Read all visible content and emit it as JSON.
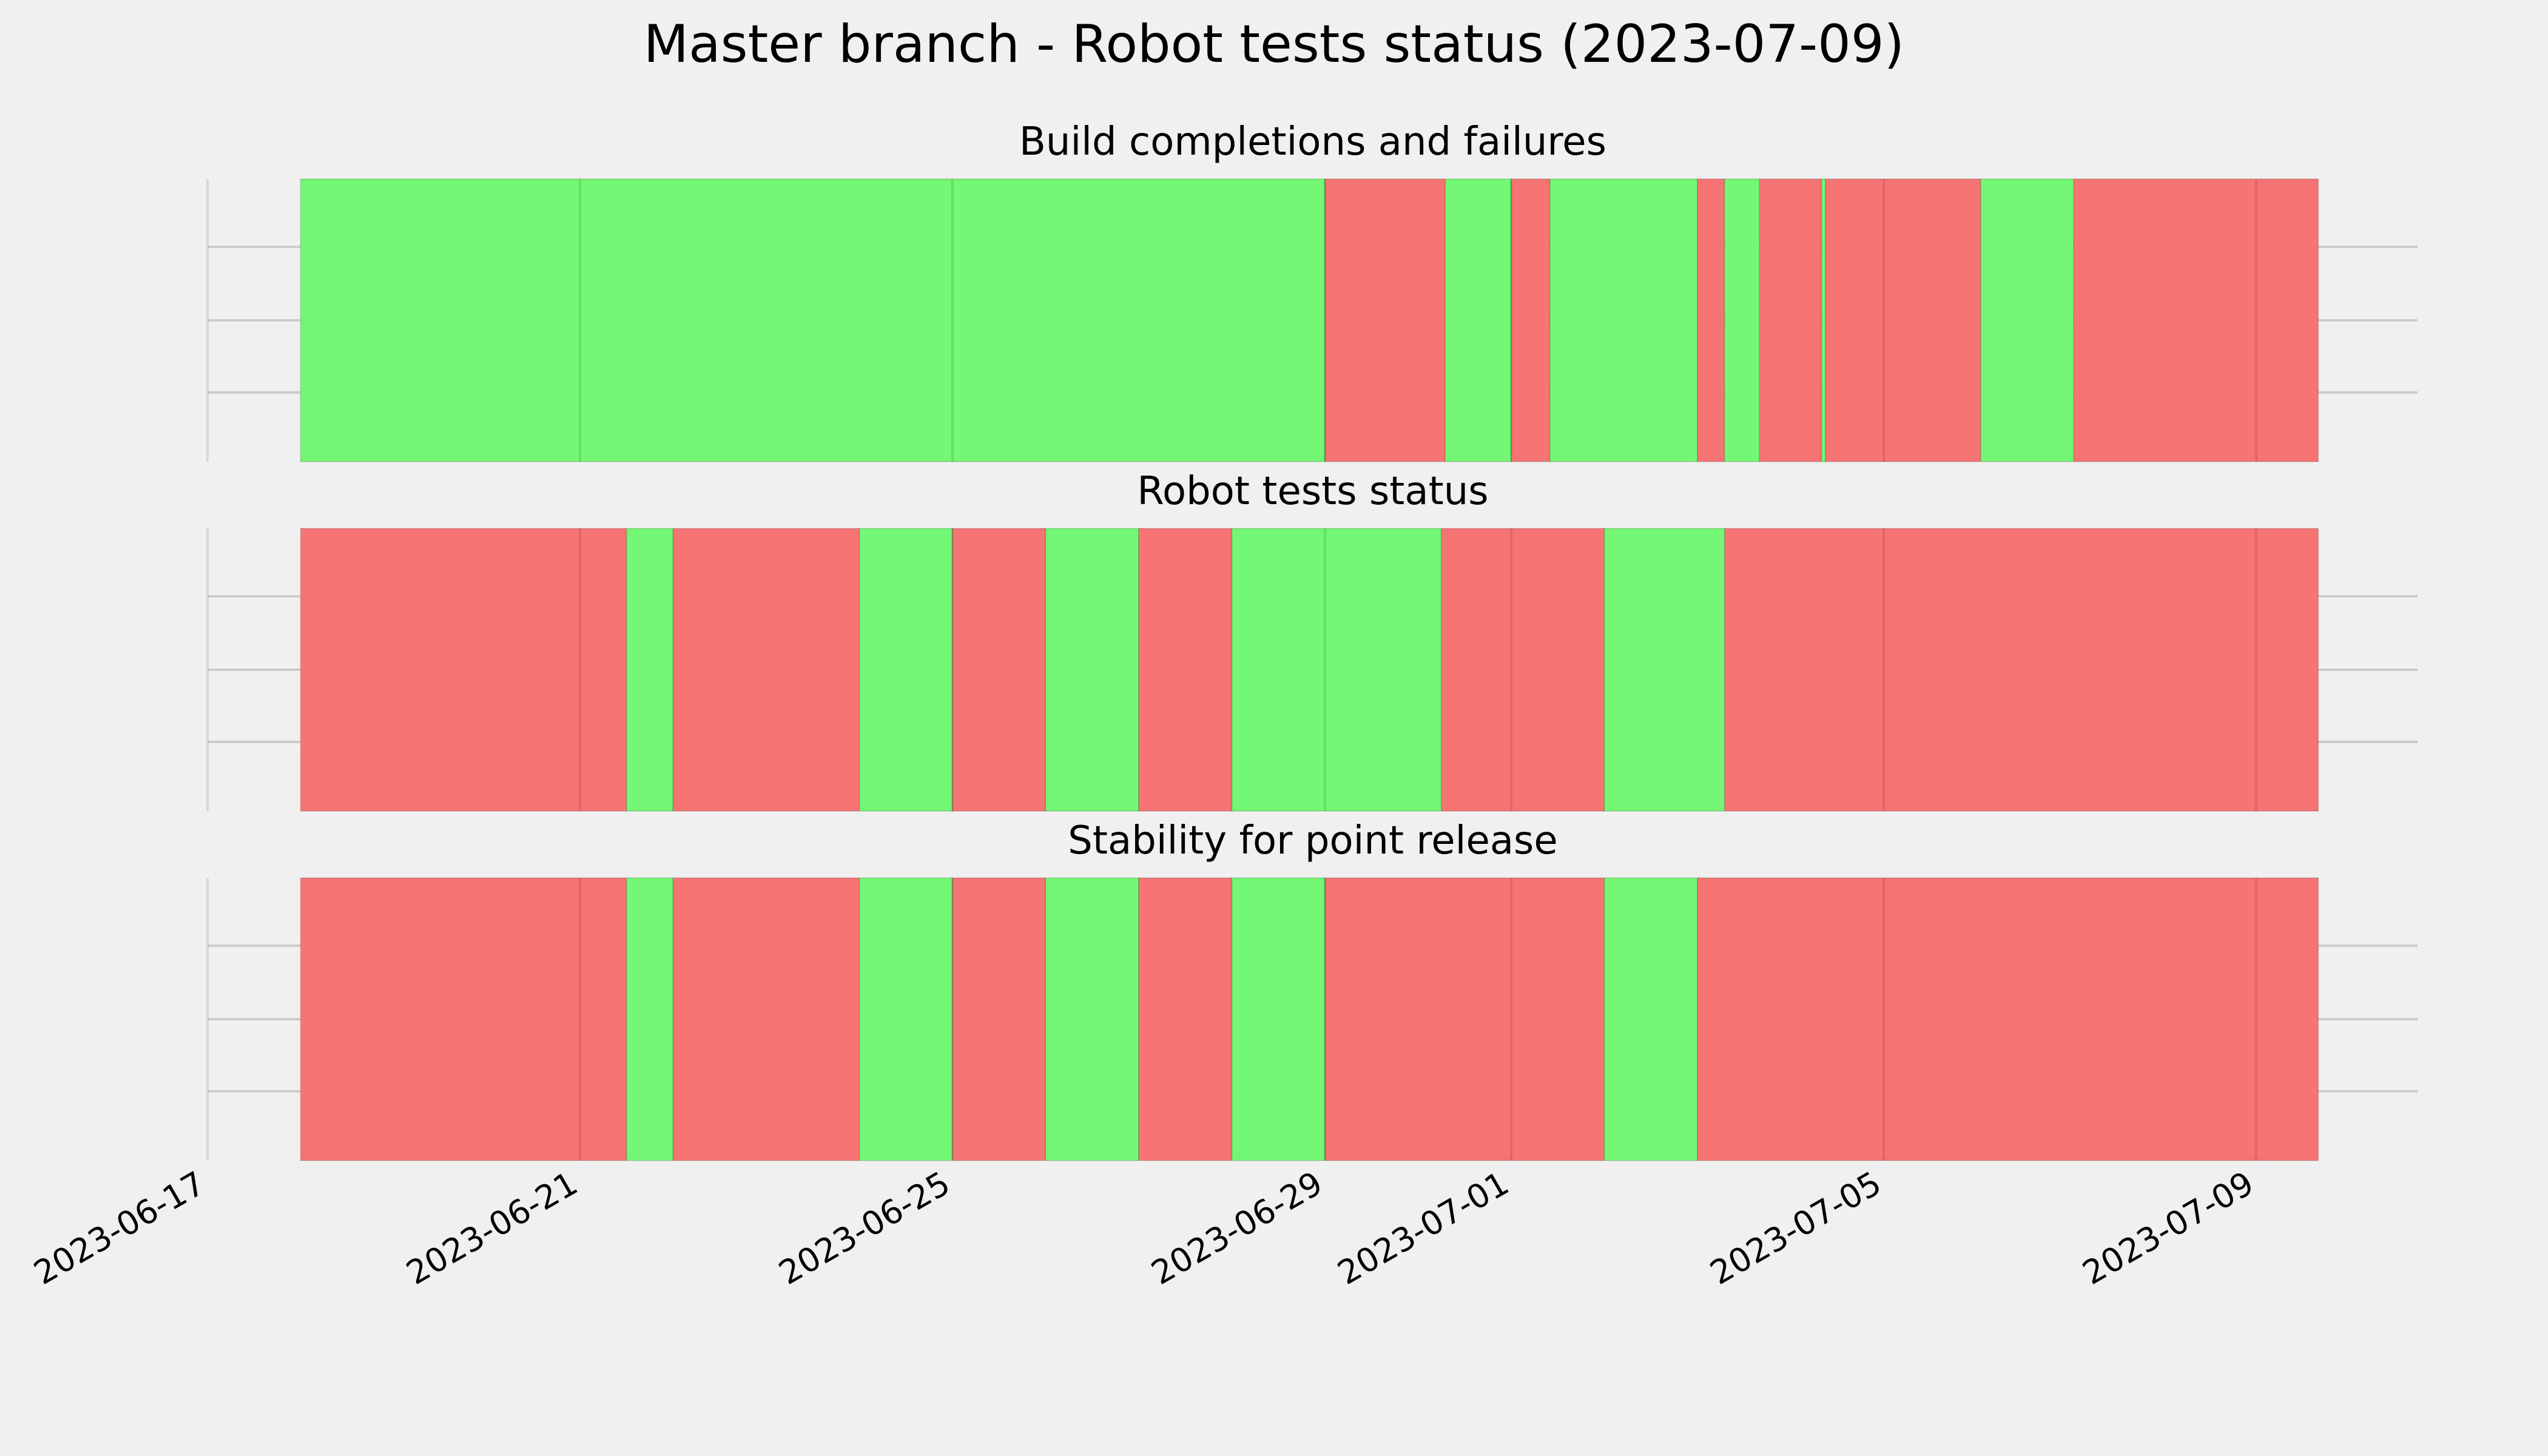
{
  "chart_data": {
    "type": "timeline",
    "title": "Master branch - Robot tests status (2023-07-09)",
    "x_tick_labels": [
      "2023-06-17",
      "2023-06-21",
      "2023-06-25",
      "2023-06-29",
      "2023-07-01",
      "2023-07-05",
      "2023-07-09"
    ],
    "x_ticks": [
      {
        "label": "2023-06-17",
        "value": "2023-06-17"
      },
      {
        "label": "2023-06-21",
        "value": "2023-06-21"
      },
      {
        "label": "2023-06-25",
        "value": "2023-06-25"
      },
      {
        "label": "2023-06-29",
        "value": "2023-06-29"
      },
      {
        "label": "2023-07-01",
        "value": "2023-07-01"
      },
      {
        "label": "2023-07-05",
        "value": "2023-07-05"
      },
      {
        "label": "2023-07-09",
        "value": "2023-07-09"
      }
    ],
    "xlim": [
      "2023-06-17",
      "2023-07-10T16:00"
    ],
    "grid": true,
    "colors": {
      "pass": "#74f774",
      "fail": "#f77474",
      "background": "#f0f0f0",
      "grid": "#cbcbcb"
    },
    "panels": [
      {
        "subtitle": "Build completions and failures",
        "segments": [
          {
            "start": "2023-06-18T00:00",
            "end": "2023-06-29T00:00",
            "status": "pass"
          },
          {
            "start": "2023-06-29T00:00",
            "end": "2023-06-30T07:00",
            "status": "fail"
          },
          {
            "start": "2023-06-30T07:00",
            "end": "2023-07-01T00:00",
            "status": "pass"
          },
          {
            "start": "2023-07-01T00:00",
            "end": "2023-07-01T10:00",
            "status": "fail"
          },
          {
            "start": "2023-07-01T10:00",
            "end": "2023-07-03T00:00",
            "status": "pass"
          },
          {
            "start": "2023-07-03T00:00",
            "end": "2023-07-03T07:00",
            "status": "fail"
          },
          {
            "start": "2023-07-03T07:00",
            "end": "2023-07-03T16:00",
            "status": "pass"
          },
          {
            "start": "2023-07-03T16:00",
            "end": "2023-07-04T08:00",
            "status": "fail"
          },
          {
            "start": "2023-07-04T08:00",
            "end": "2023-07-04T09:00",
            "status": "pass"
          },
          {
            "start": "2023-07-04T09:00",
            "end": "2023-07-06T01:00",
            "status": "fail"
          },
          {
            "start": "2023-07-06T01:00",
            "end": "2023-07-07T01:00",
            "status": "pass"
          },
          {
            "start": "2023-07-07T01:00",
            "end": "2023-07-09T16:00",
            "status": "fail"
          }
        ]
      },
      {
        "subtitle": "Robot tests status",
        "segments": [
          {
            "start": "2023-06-18T00:00",
            "end": "2023-06-21T12:00",
            "status": "fail"
          },
          {
            "start": "2023-06-21T12:00",
            "end": "2023-06-22T00:00",
            "status": "pass"
          },
          {
            "start": "2023-06-22T00:00",
            "end": "2023-06-24T00:00",
            "status": "fail"
          },
          {
            "start": "2023-06-24T00:00",
            "end": "2023-06-25T00:00",
            "status": "pass"
          },
          {
            "start": "2023-06-25T00:00",
            "end": "2023-06-26T00:00",
            "status": "fail"
          },
          {
            "start": "2023-06-26T00:00",
            "end": "2023-06-27T00:00",
            "status": "pass"
          },
          {
            "start": "2023-06-27T00:00",
            "end": "2023-06-28T00:00",
            "status": "fail"
          },
          {
            "start": "2023-06-28T00:00",
            "end": "2023-06-30T06:00",
            "status": "pass"
          },
          {
            "start": "2023-06-30T06:00",
            "end": "2023-07-02T00:00",
            "status": "fail"
          },
          {
            "start": "2023-07-02T00:00",
            "end": "2023-07-03T07:00",
            "status": "pass"
          },
          {
            "start": "2023-07-03T07:00",
            "end": "2023-07-09T16:00",
            "status": "fail"
          }
        ]
      },
      {
        "subtitle": "Stability for point release",
        "segments": [
          {
            "start": "2023-06-18T00:00",
            "end": "2023-06-21T12:00",
            "status": "fail"
          },
          {
            "start": "2023-06-21T12:00",
            "end": "2023-06-22T00:00",
            "status": "pass"
          },
          {
            "start": "2023-06-22T00:00",
            "end": "2023-06-24T00:00",
            "status": "fail"
          },
          {
            "start": "2023-06-24T00:00",
            "end": "2023-06-25T00:00",
            "status": "pass"
          },
          {
            "start": "2023-06-25T00:00",
            "end": "2023-06-26T00:00",
            "status": "fail"
          },
          {
            "start": "2023-06-26T00:00",
            "end": "2023-06-27T00:00",
            "status": "pass"
          },
          {
            "start": "2023-06-27T00:00",
            "end": "2023-06-28T00:00",
            "status": "fail"
          },
          {
            "start": "2023-06-28T00:00",
            "end": "2023-06-29T00:00",
            "status": "pass"
          },
          {
            "start": "2023-06-29T00:00",
            "end": "2023-07-02T00:00",
            "status": "fail"
          },
          {
            "start": "2023-07-02T00:00",
            "end": "2023-07-03T00:00",
            "status": "pass"
          },
          {
            "start": "2023-07-03T00:00",
            "end": "2023-07-09T16:00",
            "status": "fail"
          }
        ]
      }
    ]
  }
}
